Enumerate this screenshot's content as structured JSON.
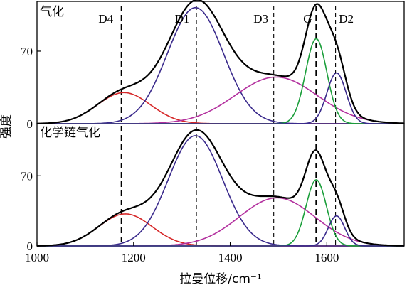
{
  "chart_data": {
    "type": "line",
    "xlabel": "拉曼位移/cm⁻¹",
    "ylabel": "强度",
    "xlim": [
      1000,
      1760
    ],
    "x_ticks": [
      1000,
      1200,
      1400,
      1600
    ],
    "y_ticks": [
      0,
      70
    ],
    "peak_lines": [
      {
        "label": "D4",
        "x": 1175,
        "style": "bold-dashed"
      },
      {
        "label": "D1",
        "x": 1330,
        "style": "thin-dashed"
      },
      {
        "label": "D3",
        "x": 1490,
        "style": "thin-dashed"
      },
      {
        "label": "G",
        "x": 1578,
        "style": "bold-dashed"
      },
      {
        "label": "D2",
        "x": 1618,
        "style": "thin-dashed"
      }
    ],
    "panels": [
      {
        "title": "气化",
        "ylim": [
          0,
          118
        ],
        "series": [
          {
            "color": "#d62728",
            "center": 1180,
            "height": 30,
            "sigma": 55
          },
          {
            "color": "#3a2a8c",
            "center": 1328,
            "height": 112,
            "sigma": 58
          },
          {
            "color": "#b3309e",
            "center": 1495,
            "height": 45,
            "sigma": 85
          },
          {
            "color": "#1a9e3a",
            "center": 1578,
            "height": 82,
            "sigma": 22
          },
          {
            "color": "#3a2a8c",
            "center": 1620,
            "height": 49,
            "sigma": 20
          },
          {
            "color": "#000000",
            "role": "fit-envelope"
          }
        ]
      },
      {
        "title": "化学链气化",
        "ylim": [
          0,
          122
        ],
        "series": [
          {
            "color": "#d62728",
            "center": 1183,
            "height": 32,
            "sigma": 55
          },
          {
            "color": "#3a2a8c",
            "center": 1328,
            "height": 110,
            "sigma": 56
          },
          {
            "color": "#b3309e",
            "center": 1497,
            "height": 48,
            "sigma": 78
          },
          {
            "color": "#1a9e3a",
            "center": 1578,
            "height": 66,
            "sigma": 21
          },
          {
            "color": "#3a2a8c",
            "center": 1620,
            "height": 30,
            "sigma": 17
          },
          {
            "color": "#000000",
            "role": "fit-envelope"
          }
        ]
      }
    ]
  }
}
